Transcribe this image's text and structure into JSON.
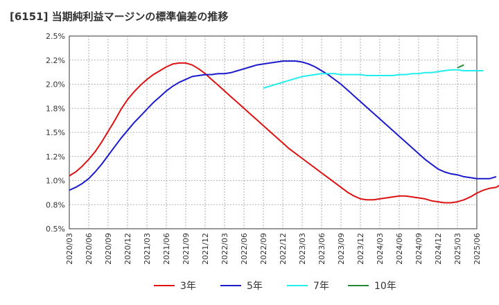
{
  "chart_data": {
    "type": "line",
    "title": "[6151]  当期純利益マージンの標準偏差の推移",
    "xlabel": "",
    "ylabel": "",
    "ylim": [
      0.5,
      2.5
    ],
    "y_ticks": [
      "0.5%",
      "0.8%",
      "1.0%",
      "1.2%",
      "1.5%",
      "1.8%",
      "2.0%",
      "2.2%",
      "2.5%"
    ],
    "x_ticks": [
      "2020/03",
      "2020/06",
      "2020/09",
      "2020/12",
      "2021/03",
      "2021/06",
      "2021/09",
      "2021/12",
      "2022/03",
      "2022/06",
      "2022/09",
      "2022/12",
      "2023/03",
      "2023/06",
      "2023/09",
      "2023/12",
      "2024/03",
      "2024/06",
      "2024/09",
      "2024/12",
      "2025/03",
      "2025/06"
    ],
    "grid": true,
    "legend_position": "bottom",
    "series": [
      {
        "name": "3年",
        "color": "#dd1111",
        "values": [
          1.05,
          1.09,
          1.15,
          1.22,
          1.3,
          1.4,
          1.51,
          1.62,
          1.74,
          1.84,
          1.92,
          1.99,
          2.05,
          2.1,
          2.14,
          2.18,
          2.21,
          2.22,
          2.22,
          2.2,
          2.16,
          2.11,
          2.05,
          1.99,
          1.93,
          1.87,
          1.81,
          1.75,
          1.69,
          1.63,
          1.57,
          1.51,
          1.45,
          1.39,
          1.33,
          1.28,
          1.23,
          1.18,
          1.13,
          1.08,
          1.03,
          0.98,
          0.93,
          0.88,
          0.84,
          0.81,
          0.8,
          0.8,
          0.81,
          0.82,
          0.83,
          0.84,
          0.84,
          0.83,
          0.82,
          0.81,
          0.79,
          0.78,
          0.77,
          0.77,
          0.78,
          0.8,
          0.83,
          0.87,
          0.9,
          0.92,
          0.93,
          0.97,
          1.02,
          1.1
        ]
      },
      {
        "name": "5年",
        "color": "#1a1acc",
        "values": [
          0.9,
          0.93,
          0.97,
          1.02,
          1.09,
          1.17,
          1.26,
          1.35,
          1.44,
          1.52,
          1.6,
          1.67,
          1.74,
          1.81,
          1.87,
          1.93,
          1.98,
          2.02,
          2.05,
          2.08,
          2.09,
          2.1,
          2.1,
          2.11,
          2.11,
          2.12,
          2.14,
          2.16,
          2.18,
          2.2,
          2.21,
          2.22,
          2.23,
          2.24,
          2.24,
          2.24,
          2.23,
          2.21,
          2.18,
          2.14,
          2.1,
          2.05,
          2.0,
          1.94,
          1.88,
          1.82,
          1.76,
          1.7,
          1.64,
          1.58,
          1.52,
          1.46,
          1.4,
          1.34,
          1.28,
          1.22,
          1.17,
          1.12,
          1.09,
          1.07,
          1.06,
          1.04,
          1.03,
          1.02,
          1.02,
          1.02,
          1.04
        ]
      },
      {
        "name": "7年",
        "color": "#22eeee",
        "values": [
          1.96,
          1.98,
          2.0,
          2.02,
          2.04,
          2.06,
          2.08,
          2.09,
          2.1,
          2.11,
          2.11,
          2.11,
          2.1,
          2.1,
          2.1,
          2.1,
          2.09,
          2.09,
          2.09,
          2.09,
          2.09,
          2.1,
          2.1,
          2.11,
          2.11,
          2.12,
          2.12,
          2.13,
          2.14,
          2.15,
          2.15,
          2.14,
          2.14,
          2.14,
          2.14
        ]
      },
      {
        "name": "10年",
        "color": "#228833",
        "values": [
          2.17,
          2.2
        ]
      }
    ]
  }
}
